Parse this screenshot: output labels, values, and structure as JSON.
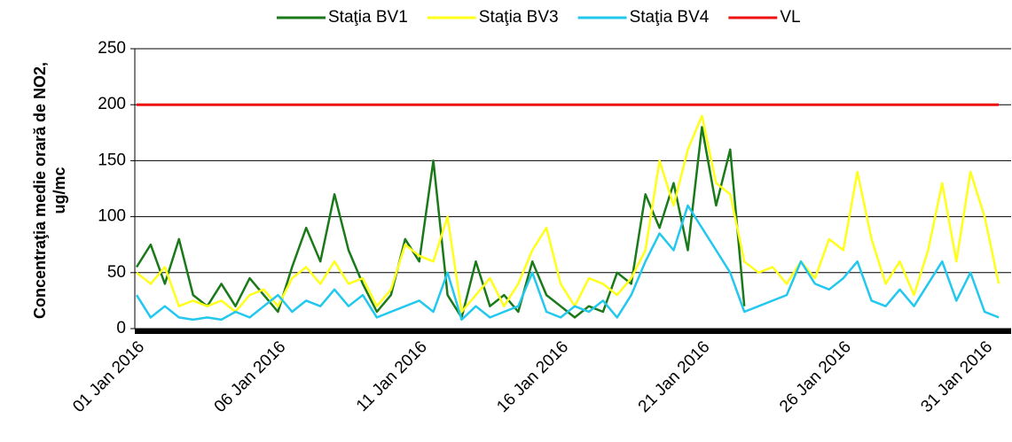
{
  "chart_data": {
    "type": "line",
    "y_label": [
      "Concentraţia medie orară de NO2,",
      "ug/mc"
    ],
    "categories": [
      "01 Jan 2016",
      null,
      null,
      null,
      null,
      null,
      null,
      null,
      null,
      null,
      "06 Jan 2016",
      null,
      null,
      null,
      null,
      null,
      null,
      null,
      null,
      null,
      "11 Jan 2016",
      null,
      null,
      null,
      null,
      null,
      null,
      null,
      null,
      null,
      "16 Jan 2016",
      null,
      null,
      null,
      null,
      null,
      null,
      null,
      null,
      null,
      "21 Jan 2016",
      null,
      null,
      null,
      null,
      null,
      null,
      null,
      null,
      null,
      "26 Jan 2016",
      null,
      null,
      null,
      null,
      null,
      null,
      null,
      null,
      null,
      "31 Jan 2016",
      null
    ],
    "series": [
      {
        "name": "Staţia BV1",
        "color": "#1a7a1a",
        "values": [
          55,
          75,
          40,
          80,
          30,
          20,
          40,
          20,
          45,
          30,
          15,
          55,
          90,
          60,
          120,
          70,
          40,
          15,
          30,
          80,
          60,
          150,
          30,
          10,
          60,
          20,
          30,
          15,
          60,
          30,
          20,
          10,
          20,
          15,
          50,
          40,
          120,
          90,
          130,
          70,
          180,
          110,
          160,
          20,
          null,
          null,
          null,
          null,
          null,
          null,
          null,
          null,
          null,
          null,
          null,
          null,
          null,
          null,
          null,
          null,
          null,
          null
        ]
      },
      {
        "name": "Staţia BV3",
        "color": "#ffff1a",
        "values": [
          50,
          40,
          55,
          20,
          25,
          20,
          25,
          15,
          30,
          35,
          20,
          45,
          55,
          40,
          60,
          40,
          45,
          20,
          35,
          75,
          65,
          60,
          100,
          15,
          30,
          45,
          20,
          40,
          70,
          90,
          40,
          20,
          45,
          40,
          30,
          45,
          70,
          150,
          110,
          160,
          190,
          130,
          120,
          60,
          50,
          55,
          40,
          60,
          45,
          80,
          70,
          140,
          80,
          40,
          60,
          30,
          70,
          130,
          60,
          140,
          100,
          40
        ]
      },
      {
        "name": "Staţia BV4",
        "color": "#22c8ee",
        "values": [
          30,
          10,
          20,
          10,
          8,
          10,
          8,
          15,
          10,
          20,
          30,
          15,
          25,
          20,
          35,
          20,
          30,
          10,
          15,
          20,
          25,
          15,
          50,
          8,
          20,
          10,
          15,
          20,
          50,
          15,
          10,
          20,
          15,
          25,
          10,
          30,
          60,
          85,
          70,
          110,
          90,
          70,
          50,
          15,
          20,
          25,
          30,
          60,
          40,
          35,
          45,
          60,
          25,
          20,
          35,
          20,
          40,
          60,
          25,
          50,
          15,
          10
        ]
      },
      {
        "name": "VL",
        "color": "#ee1111",
        "values": [
          200,
          200,
          200,
          200,
          200,
          200,
          200,
          200,
          200,
          200,
          200,
          200,
          200,
          200,
          200,
          200,
          200,
          200,
          200,
          200,
          200,
          200,
          200,
          200,
          200,
          200,
          200,
          200,
          200,
          200,
          200,
          200,
          200,
          200,
          200,
          200,
          200,
          200,
          200,
          200,
          200,
          200,
          200,
          200,
          200,
          200,
          200,
          200,
          200,
          200,
          200,
          200,
          200,
          200,
          200,
          200,
          200,
          200,
          200,
          200,
          200,
          200
        ]
      }
    ],
    "ylim": [
      0,
      250
    ],
    "yticks": [
      0,
      50,
      100,
      150,
      200,
      250
    ],
    "grid": true,
    "legend": "top"
  }
}
